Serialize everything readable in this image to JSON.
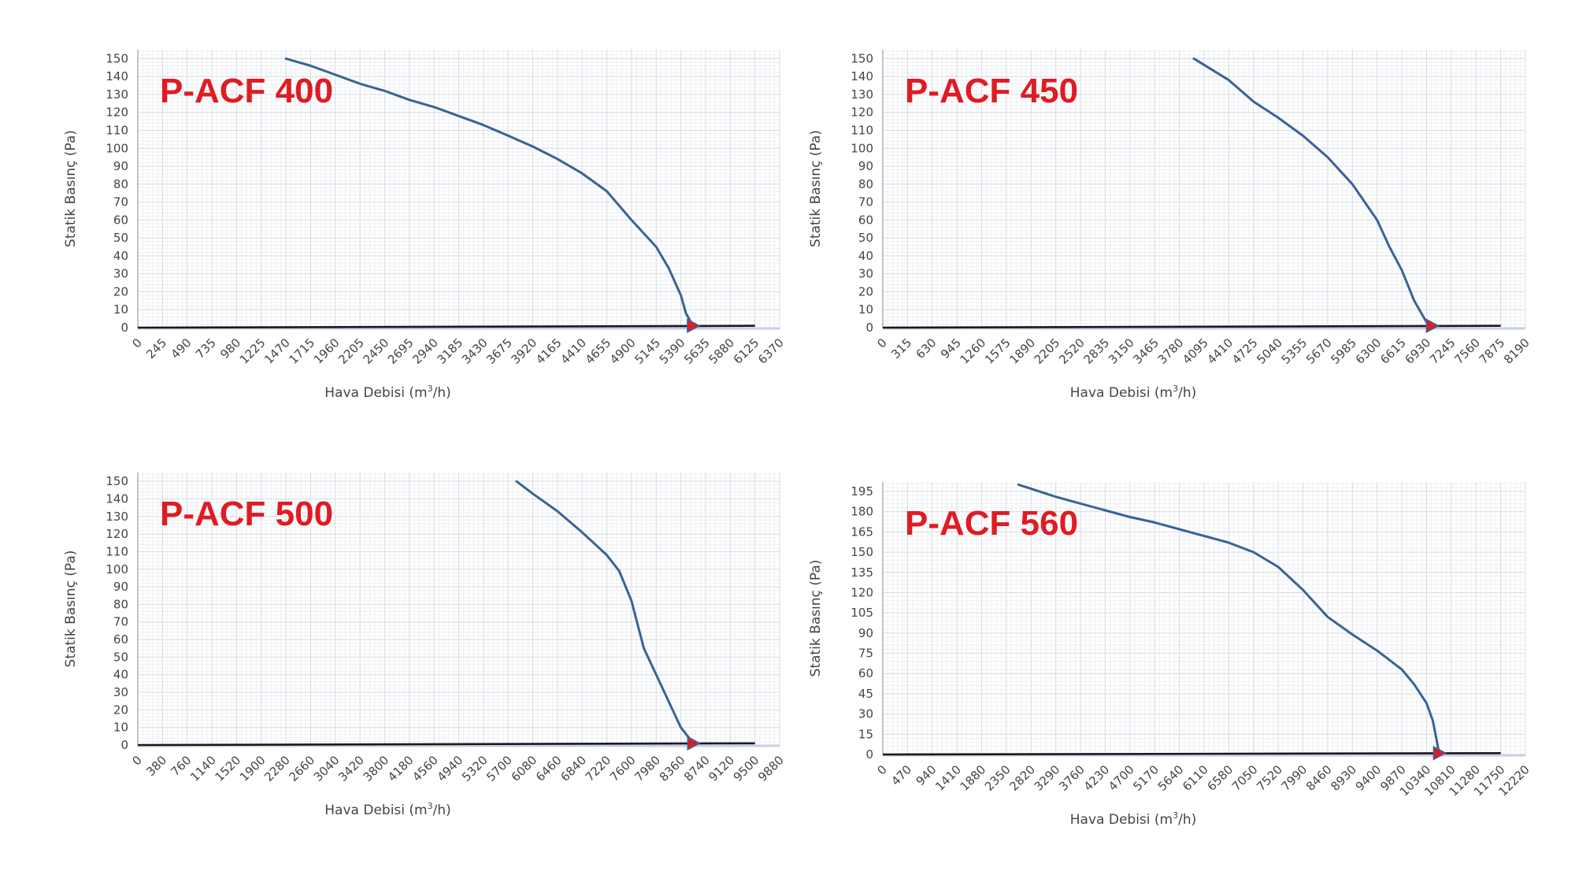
{
  "chart_data": [
    {
      "type": "line",
      "title": "P-ACF 400",
      "xlabel": "Hava Debisi",
      "xlabel_unit_base": "m",
      "xlabel_unit_sup": "3",
      "xlabel_unit_rest": "/h",
      "ylabel": "Statik Basınç (Pa)",
      "x_ticks": [
        "0",
        "245",
        "490",
        "735",
        "980",
        "1225",
        "1470",
        "1715",
        "1960",
        "2205",
        "2450",
        "2695",
        "2940",
        "3185",
        "3430",
        "3675",
        "3920",
        "4165",
        "4410",
        "4655",
        "4900",
        "5145",
        "5390",
        "5635",
        "5880",
        "6125",
        "6370"
      ],
      "y_ticks": [
        "0",
        "10",
        "20",
        "30",
        "40",
        "50",
        "60",
        "70",
        "80",
        "90",
        "100",
        "110",
        "120",
        "130",
        "140",
        "150"
      ],
      "xlim": [
        0,
        6370
      ],
      "ylim": [
        0,
        155
      ],
      "grid": true,
      "colors": {
        "curve": "#3a6396",
        "baseline": "#1a1a1a",
        "marker": "#e01b22"
      },
      "series": [
        {
          "x": [
            1470,
            1715,
            1960,
            2205,
            2450,
            2695,
            2940,
            3185,
            3430,
            3675,
            3920,
            4165,
            4410,
            4655,
            4900,
            5145,
            5270,
            5390,
            5440,
            5510
          ],
          "y": [
            150,
            146,
            141,
            136,
            132,
            127,
            123,
            118,
            113,
            107,
            101,
            94,
            86,
            76,
            60,
            45,
            33,
            18,
            8,
            1
          ]
        }
      ],
      "baseline": {
        "x": [
          0,
          6125
        ],
        "y": [
          0,
          1
        ]
      },
      "operating_point": {
        "x": 5510,
        "y": 1
      }
    },
    {
      "type": "line",
      "title": "P-ACF 450",
      "xlabel": "Hava Debisi",
      "xlabel_unit_base": "m",
      "xlabel_unit_sup": "3",
      "xlabel_unit_rest": "/h",
      "ylabel": "Statik Basınç (Pa)",
      "x_ticks": [
        "0",
        "315",
        "630",
        "945",
        "1260",
        "1575",
        "1890",
        "2205",
        "2520",
        "2835",
        "3150",
        "3465",
        "3780",
        "4095",
        "4410",
        "4725",
        "5040",
        "5355",
        "5670",
        "5985",
        "6300",
        "6615",
        "6930",
        "7245",
        "7560",
        "7875",
        "8190"
      ],
      "y_ticks": [
        "0",
        "10",
        "20",
        "30",
        "40",
        "50",
        "60",
        "70",
        "80",
        "90",
        "100",
        "110",
        "120",
        "130",
        "140",
        "150"
      ],
      "xlim": [
        0,
        8190
      ],
      "ylim": [
        0,
        155
      ],
      "grid": true,
      "colors": {
        "curve": "#3a6396",
        "baseline": "#1a1a1a",
        "marker": "#e01b22"
      },
      "series": [
        {
          "x": [
            3965,
            4410,
            4725,
            5040,
            5355,
            5670,
            5985,
            6300,
            6458,
            6615,
            6773,
            6930,
            7000
          ],
          "y": [
            150,
            138,
            126,
            117,
            107,
            95,
            80,
            60,
            45,
            32,
            15,
            3,
            1
          ]
        }
      ],
      "baseline": {
        "x": [
          0,
          7875
        ],
        "y": [
          0,
          1
        ]
      },
      "operating_point": {
        "x": 7000,
        "y": 1
      }
    },
    {
      "type": "line",
      "title": "P-ACF 500",
      "xlabel": "Hava Debisi",
      "xlabel_unit_base": "m",
      "xlabel_unit_sup": "3",
      "xlabel_unit_rest": "/h",
      "ylabel": "Statik Basınç (Pa)",
      "x_ticks": [
        "0",
        "380",
        "760",
        "1140",
        "1520",
        "1900",
        "2280",
        "2660",
        "3040",
        "3420",
        "3800",
        "4180",
        "4560",
        "4940",
        "5320",
        "5700",
        "6080",
        "6460",
        "6840",
        "7220",
        "7600",
        "7980",
        "8360",
        "8740",
        "9120",
        "9500",
        "9880"
      ],
      "y_ticks": [
        "0",
        "10",
        "20",
        "30",
        "40",
        "50",
        "60",
        "70",
        "80",
        "90",
        "100",
        "110",
        "120",
        "130",
        "140",
        "150"
      ],
      "xlim": [
        0,
        9880
      ],
      "ylim": [
        0,
        155
      ],
      "grid": true,
      "colors": {
        "curve": "#3a6396",
        "baseline": "#1a1a1a",
        "marker": "#e01b22"
      },
      "series": [
        {
          "x": [
            5830,
            6080,
            6460,
            6840,
            7220,
            7410,
            7600,
            7790,
            7980,
            8170,
            8360,
            8550
          ],
          "y": [
            150,
            143,
            133,
            121,
            108,
            99,
            82,
            55,
            40,
            25,
            10,
            1
          ]
        }
      ],
      "baseline": {
        "x": [
          0,
          9500
        ],
        "y": [
          0,
          1
        ]
      },
      "operating_point": {
        "x": 8550,
        "y": 1
      }
    },
    {
      "type": "line",
      "title": "P-ACF 560",
      "xlabel": "Hava Debisi",
      "xlabel_unit_base": "m",
      "xlabel_unit_sup": "3",
      "xlabel_unit_rest": "/h",
      "ylabel": "Statik Basınç (Pa)",
      "x_ticks": [
        "0",
        "470",
        "940",
        "1410",
        "1880",
        "2350",
        "2820",
        "3290",
        "3760",
        "4230",
        "4700",
        "5170",
        "5640",
        "6110",
        "6580",
        "7050",
        "7520",
        "7990",
        "8460",
        "8930",
        "9400",
        "9870",
        "10340",
        "10810",
        "11280",
        "11750",
        "12220"
      ],
      "y_ticks": [
        "0",
        "15",
        "30",
        "45",
        "60",
        "75",
        "90",
        "105",
        "120",
        "135",
        "150",
        "165",
        "180",
        "195"
      ],
      "xlim": [
        0,
        12220
      ],
      "ylim": [
        0,
        202
      ],
      "grid": true,
      "colors": {
        "curve": "#3a6396",
        "baseline": "#1a1a1a",
        "marker": "#e01b22"
      },
      "series": [
        {
          "x": [
            2580,
            2820,
            3290,
            3760,
            4230,
            4700,
            5170,
            5640,
            6110,
            6580,
            7050,
            7520,
            7990,
            8460,
            8930,
            9400,
            9870,
            10105,
            10340,
            10460,
            10580
          ],
          "y": [
            200,
            197,
            191,
            186,
            181,
            176,
            172,
            167,
            162,
            157,
            150,
            139,
            122,
            102,
            89,
            77,
            63,
            52,
            38,
            25,
            1
          ]
        }
      ],
      "baseline": {
        "x": [
          0,
          11750
        ],
        "y": [
          0,
          1
        ]
      },
      "operating_point": {
        "x": 10580,
        "y": 1
      }
    }
  ]
}
